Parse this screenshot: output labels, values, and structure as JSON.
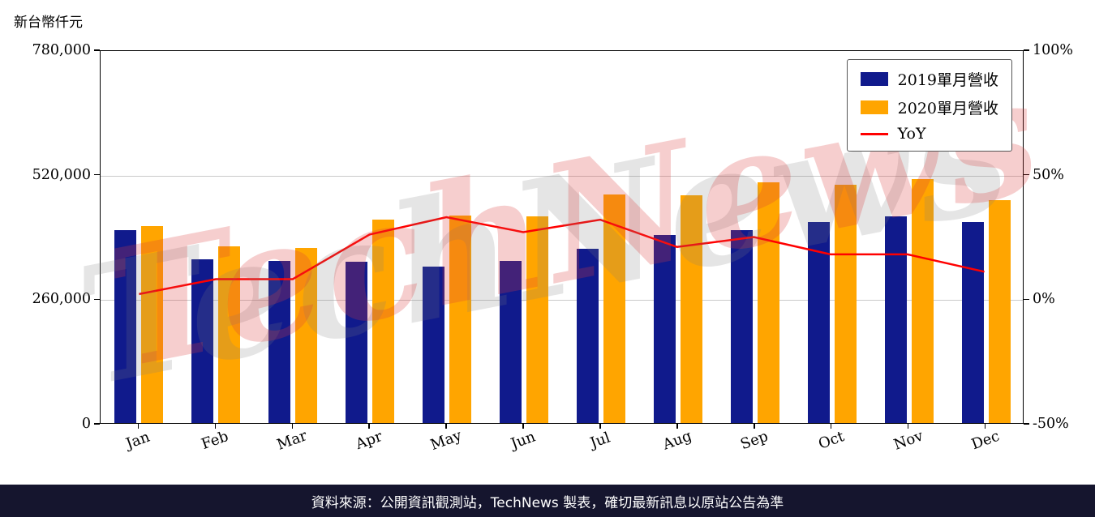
{
  "page": {
    "watermark": "TechNews",
    "footer": "資料來源：公開資訊觀測站，TechNews 製表，確切最新訊息以原站公告為準"
  },
  "chart_data": {
    "type": "bar",
    "title": "",
    "y_axis_title": "新台幣仟元",
    "categories": [
      "Jan",
      "Feb",
      "Mar",
      "Apr",
      "May",
      "Jun",
      "Jul",
      "Aug",
      "Sep",
      "Oct",
      "Nov",
      "Dec"
    ],
    "series": [
      {
        "name": "2019單月營收",
        "kind": "bar",
        "axis": "left",
        "color": "#101A8C",
        "values": [
          402000,
          341000,
          339000,
          336000,
          327000,
          339000,
          363000,
          392000,
          402000,
          419000,
          431000,
          419000
        ]
      },
      {
        "name": "2020單月營收",
        "kind": "bar",
        "axis": "left",
        "color": "#FFA500",
        "values": [
          412000,
          369000,
          365000,
          424000,
          434000,
          431000,
          478000,
          476000,
          503000,
          497000,
          509000,
          466000
        ]
      },
      {
        "name": "YoY",
        "kind": "line",
        "axis": "right",
        "color": "#FF0000",
        "values": [
          2,
          8,
          8,
          26,
          33,
          27,
          32,
          21,
          25,
          18,
          18,
          11
        ]
      }
    ],
    "left_axis": {
      "min": 0,
      "max": 780000,
      "unit": "新台幣仟元",
      "ticks": [
        {
          "label": "0",
          "value": 0
        },
        {
          "label": "260,000",
          "value": 260000
        },
        {
          "label": "520,000",
          "value": 520000
        },
        {
          "label": "780,000",
          "value": 780000
        }
      ],
      "gridlines": [
        260000,
        520000
      ]
    },
    "right_axis": {
      "min": -50,
      "max": 100,
      "unit": "%",
      "ticks": [
        {
          "label": "-50%",
          "value": -50
        },
        {
          "label": "0%",
          "value": 0
        },
        {
          "label": "50%",
          "value": 50
        },
        {
          "label": "100%",
          "value": 100
        }
      ]
    },
    "legend_position": "upper right",
    "grid": "horizontal"
  }
}
